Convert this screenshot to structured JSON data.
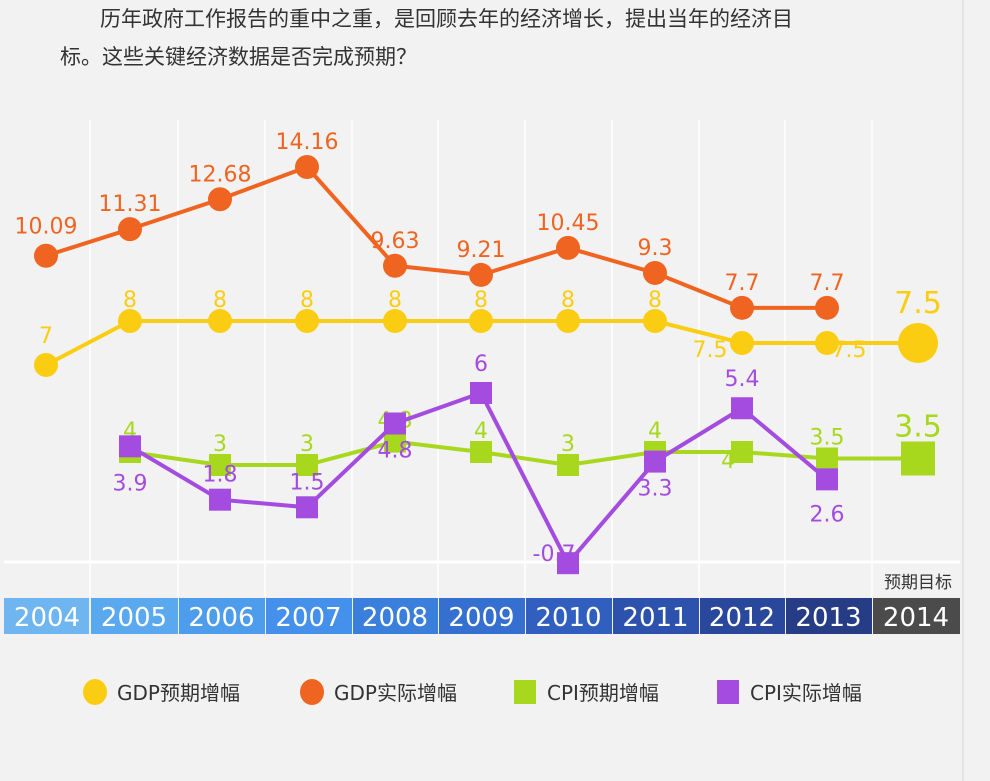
{
  "intro": {
    "line1": "历年政府工作报告的重中之重，是回顾去年的经济增长，提出当年的经济目",
    "line2": "标。这些关键经济数据是否完成预期？"
  },
  "chart_data": {
    "type": "line",
    "categories": [
      "2004",
      "2005",
      "2006",
      "2007",
      "2008",
      "2009",
      "2010",
      "2011",
      "2012",
      "2013",
      "2014"
    ],
    "target_label": "预期目标",
    "series": [
      {
        "name": "GDP预期增幅",
        "color": "#fbcd12",
        "marker": "circle",
        "values": [
          7,
          8,
          8,
          8,
          8,
          8,
          8,
          8,
          7.5,
          7.5,
          7.5
        ]
      },
      {
        "name": "GDP实际增幅",
        "color": "#ef6420",
        "marker": "circle",
        "values": [
          10.09,
          11.31,
          12.68,
          14.16,
          9.63,
          9.21,
          10.45,
          9.3,
          7.7,
          7.7,
          null
        ]
      },
      {
        "name": "CPI预期增幅",
        "color": "#a8d81e",
        "marker": "square",
        "values": [
          null,
          4,
          3,
          3,
          4.8,
          4,
          3,
          4,
          4,
          3.5,
          3.5
        ]
      },
      {
        "name": "CPI实际增幅",
        "color": "#a44be0",
        "marker": "square",
        "values": [
          null,
          3.9,
          1.8,
          1.5,
          4.8,
          6,
          -0.7,
          3.3,
          5.4,
          2.6,
          null
        ]
      }
    ],
    "year_bar_colors": [
      "#6fb6f0",
      "#5aa8ee",
      "#4e9cec",
      "#4490ea",
      "#3a7fdc",
      "#356fcf",
      "#305fc0",
      "#2c52ae",
      "#29489c",
      "#263d86",
      "#4b4b4b"
    ],
    "legend_position": "bottom",
    "grid": "vertical"
  }
}
